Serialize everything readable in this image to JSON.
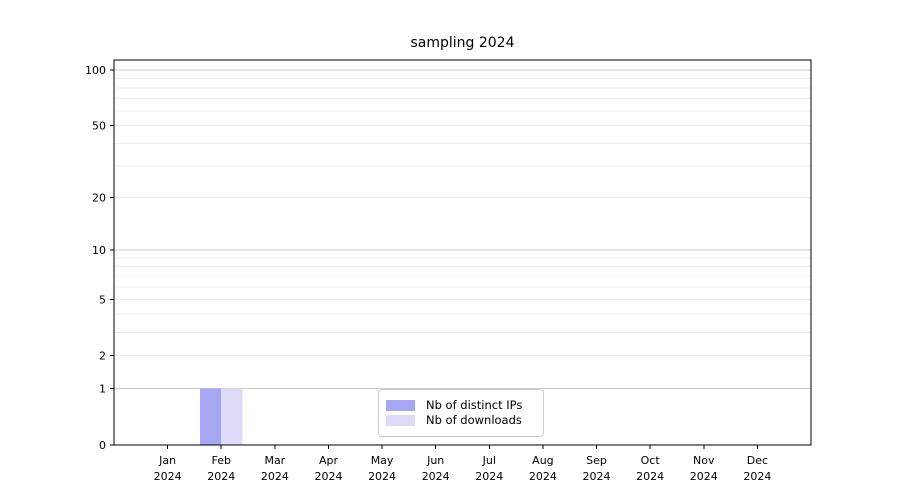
{
  "chart_data": {
    "type": "bar",
    "title": "sampling 2024",
    "categories": [
      {
        "label": "Jan",
        "sublabel": "2024"
      },
      {
        "label": "Feb",
        "sublabel": "2024"
      },
      {
        "label": "Mar",
        "sublabel": "2024"
      },
      {
        "label": "Apr",
        "sublabel": "2024"
      },
      {
        "label": "May",
        "sublabel": "2024"
      },
      {
        "label": "Jun",
        "sublabel": "2024"
      },
      {
        "label": "Jul",
        "sublabel": "2024"
      },
      {
        "label": "Aug",
        "sublabel": "2024"
      },
      {
        "label": "Sep",
        "sublabel": "2024"
      },
      {
        "label": "Oct",
        "sublabel": "2024"
      },
      {
        "label": "Nov",
        "sublabel": "2024"
      },
      {
        "label": "Dec",
        "sublabel": "2024"
      }
    ],
    "series": [
      {
        "name": "Nb of distinct IPs",
        "color": "#a6a6f2",
        "values": [
          0,
          1,
          0,
          0,
          0,
          0,
          0,
          0,
          0,
          0,
          0,
          0
        ]
      },
      {
        "name": "Nb of downloads",
        "color": "#dcdcf9",
        "values": [
          0,
          1,
          0,
          0,
          0,
          0,
          0,
          0,
          0,
          0,
          0,
          0
        ]
      }
    ],
    "y_axis": {
      "scale": "log1p",
      "ticks": [
        0,
        1,
        2,
        5,
        10,
        20,
        50,
        100
      ],
      "major_gridlines": [
        1,
        10,
        100
      ],
      "minor_gridlines": [
        2,
        3,
        4,
        5,
        6,
        7,
        8,
        9,
        20,
        30,
        40,
        50,
        60,
        70,
        80,
        90
      ],
      "ylim": [
        0,
        113
      ]
    },
    "xlabel": "",
    "ylabel": "",
    "legend": {
      "position": "lower center"
    },
    "grid": true,
    "colors": {
      "grid_minor": "#ececec",
      "grid_major": "#cccccc",
      "spine": "#000000",
      "text": "#000000",
      "background": "#ffffff"
    }
  }
}
